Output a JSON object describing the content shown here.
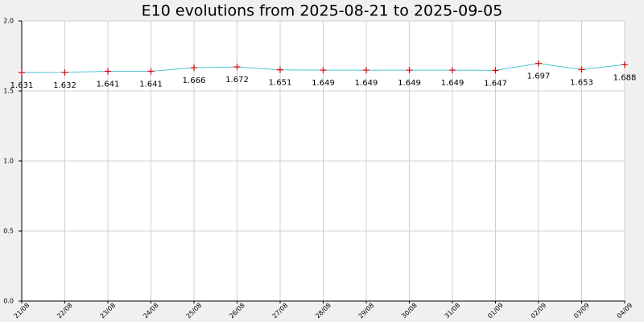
{
  "chart_data": {
    "type": "line",
    "title": "E10 evolutions from 2025-08-21 to 2025-09-05",
    "categories": [
      "21/08",
      "22/08",
      "23/08",
      "24/08",
      "25/08",
      "26/08",
      "27/08",
      "28/08",
      "29/08",
      "30/08",
      "31/08",
      "01/09",
      "02/09",
      "03/09",
      "04/09"
    ],
    "series": [
      {
        "color": "#4cc4d4",
        "marker_color": "#e00000",
        "values": [
          1.631,
          1.632,
          1.641,
          1.641,
          1.666,
          1.672,
          1.651,
          1.649,
          1.649,
          1.649,
          1.649,
          1.647,
          1.697,
          1.653,
          1.688
        ]
      }
    ],
    "ylim": [
      0,
      2
    ],
    "yticks": [
      {
        "value": 0,
        "label": "0.0"
      },
      {
        "value": 0.5,
        "label": "0.5"
      },
      {
        "value": 1,
        "label": "1.0"
      },
      {
        "value": 1.5,
        "label": "1.5"
      },
      {
        "value": 2,
        "label": "2.0"
      }
    ],
    "grid": true
  }
}
